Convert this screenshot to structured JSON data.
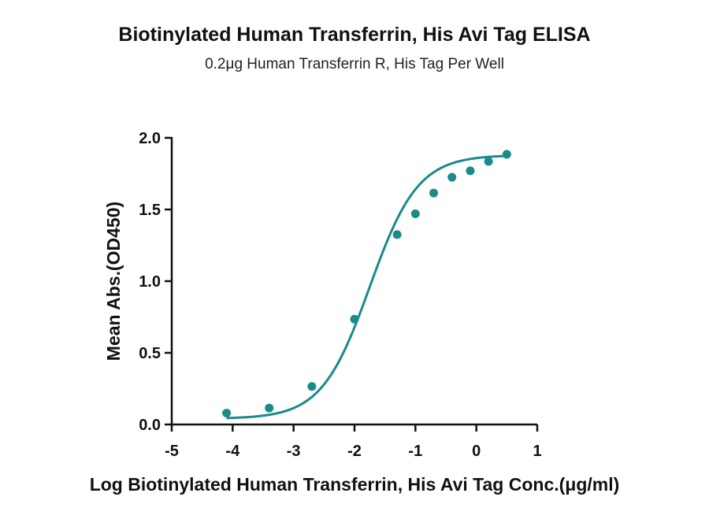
{
  "colors": {
    "series": "#1a8a8a",
    "axis": "#111111"
  },
  "chart_data": {
    "type": "scatter",
    "title": "Biotinylated Human Transferrin, His Avi Tag ELISA",
    "subtitle": "0.2μg Human Transferrin R, His Tag Per Well",
    "xlabel": "Log Biotinylated Human Transferrin, His Avi Tag Conc.(μg/ml)",
    "ylabel": "Mean Abs.(OD450)",
    "xlim": [
      -5,
      1
    ],
    "ylim": [
      0,
      2
    ],
    "x_ticks": [
      "-5",
      "-4",
      "-3",
      "-2",
      "-1",
      "0",
      "1"
    ],
    "y_ticks": [
      "0.0",
      "0.5",
      "1.0",
      "1.5",
      "2.0"
    ],
    "grid": false,
    "series": [
      {
        "points": [
          {
            "x": -4.1,
            "y": 0.08
          },
          {
            "x": -3.4,
            "y": 0.115
          },
          {
            "x": -2.7,
            "y": 0.265
          },
          {
            "x": -2.0,
            "y": 0.735
          },
          {
            "x": -1.3,
            "y": 1.325
          },
          {
            "x": -1.0,
            "y": 1.47
          },
          {
            "x": -0.7,
            "y": 1.615
          },
          {
            "x": -0.4,
            "y": 1.725
          },
          {
            "x": -0.1,
            "y": 1.77
          },
          {
            "x": 0.2,
            "y": 1.835
          },
          {
            "x": 0.5,
            "y": 1.885
          }
        ],
        "fit": {
          "model": "4PL",
          "bottom": 0.04,
          "top": 1.88,
          "logEC50": -1.75,
          "hill": 1.1
        }
      }
    ]
  }
}
